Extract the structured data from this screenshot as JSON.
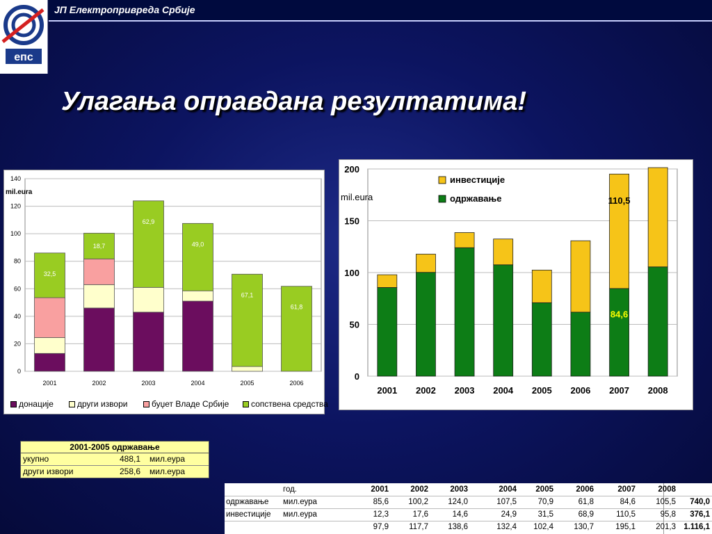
{
  "header": {
    "company": "ЈП Електропривреда Србије",
    "logo_text": "епс"
  },
  "title": "Улагања оправдана резултатима!",
  "colors": {
    "purple": "#6b0d5e",
    "cream": "#ffffcc",
    "salmon": "#f9a0a0",
    "lime": "#99cc22",
    "green": "#0d7d16",
    "gold": "#f6c418"
  },
  "chart_data": [
    {
      "type": "bar",
      "stacked": true,
      "unit_label": "mil.eura",
      "categories": [
        "2001",
        "2002",
        "2003",
        "2004",
        "2005",
        "2006"
      ],
      "ylim": [
        0,
        140
      ],
      "yticks": [
        "0",
        "20",
        "40",
        "60",
        "80",
        "100",
        "120",
        "140"
      ],
      "series": [
        {
          "name": "донације",
          "values": [
            13,
            46,
            43,
            51,
            0,
            0
          ]
        },
        {
          "name": "други извори",
          "values": [
            11.5,
            17,
            18,
            7.5,
            3.5,
            0
          ]
        },
        {
          "name": "буџет Владе Србије",
          "values": [
            29,
            18.7,
            0,
            0,
            0,
            0
          ]
        },
        {
          "name": "сопствена средства",
          "values": [
            32.5,
            18.7,
            62.9,
            49.0,
            67.1,
            61.8
          ]
        }
      ],
      "data_labels": [
        "32,5",
        "18,7",
        "62,9",
        "49,0",
        "67,1",
        "61,8"
      ]
    },
    {
      "type": "bar",
      "stacked": true,
      "unit_label": "mil.eura",
      "categories": [
        "2001",
        "2002",
        "2003",
        "2004",
        "2005",
        "2006",
        "2007",
        "2008"
      ],
      "ylim": [
        0,
        200
      ],
      "yticks": [
        "0",
        "50",
        "100",
        "150",
        "200"
      ],
      "series": [
        {
          "name": "одржавање",
          "values": [
            85.6,
            100.2,
            124.0,
            107.5,
            70.9,
            61.8,
            84.6,
            105.5
          ]
        },
        {
          "name": "инвестиције",
          "values": [
            12.3,
            17.6,
            14.6,
            24.9,
            31.5,
            68.9,
            110.5,
            95.8
          ]
        }
      ],
      "data_labels": {
        "investicije_2007": "110,5",
        "odrzavanje_2007": "84,6"
      }
    }
  ],
  "summary": {
    "title": "2001-2005 одржавање",
    "rows": [
      {
        "label": "укупно",
        "value": "488,1",
        "unit": "мил.еура"
      },
      {
        "label": "други извори",
        "value": "258,6",
        "unit": "мил.еура"
      }
    ]
  },
  "table": {
    "header": {
      "label": "год.",
      "years": [
        "2001",
        "2002",
        "2003",
        "2004",
        "2005",
        "2006",
        "2007",
        "2008"
      ]
    },
    "rows": [
      {
        "name": "одржавање",
        "unit": "мил.еура",
        "values": [
          "85,6",
          "100,2",
          "124,0",
          "107,5",
          "70,9",
          "61,8",
          "84,6",
          "105,5"
        ],
        "total": "740,0"
      },
      {
        "name": "инвестиције",
        "unit": "мил.еура",
        "values": [
          "12,3",
          "17,6",
          "14,6",
          "24,9",
          "31,5",
          "68,9",
          "110,5",
          "95,8"
        ],
        "total": "376,1"
      },
      {
        "name": "",
        "unit": "",
        "values": [
          "97,9",
          "117,7",
          "138,6",
          "132,4",
          "102,4",
          "130,7",
          "195,1",
          "201,3"
        ],
        "total": "1.116,1"
      }
    ]
  }
}
